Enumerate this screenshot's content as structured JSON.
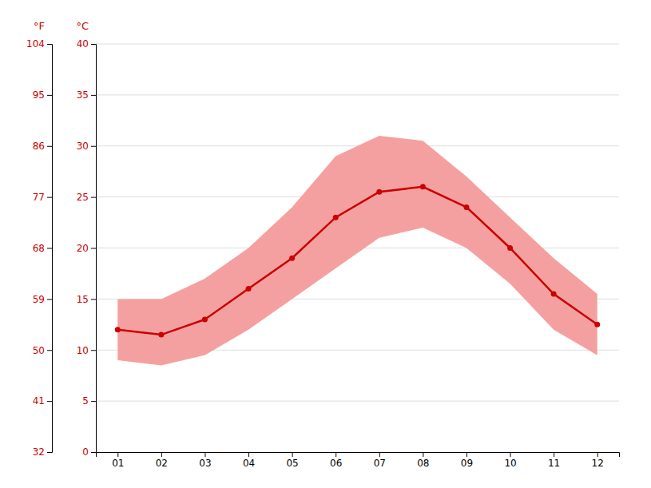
{
  "chart_data": {
    "type": "line",
    "categories": [
      "01",
      "02",
      "03",
      "04",
      "05",
      "06",
      "07",
      "08",
      "09",
      "10",
      "11",
      "12"
    ],
    "series": [
      {
        "type": "band",
        "color": "#f5a0a0",
        "values": [
          15,
          15,
          17,
          20,
          24,
          29,
          31,
          30.5,
          27,
          23,
          19,
          15.5
        ],
        "lower_values": [
          9,
          8.5,
          9.5,
          12,
          15,
          18,
          21,
          22,
          20,
          16.5,
          12,
          9.5
        ]
      },
      {
        "type": "line",
        "color": "#cc0000",
        "marker": "circle",
        "values": [
          12,
          11.5,
          13,
          16,
          19,
          23,
          25.5,
          26,
          24,
          20,
          15.5,
          12.5
        ]
      }
    ],
    "ylabel": "°C",
    "y2label": "°F",
    "ylim": [
      0,
      40
    ],
    "yticks": [
      0,
      5,
      10,
      15,
      20,
      25,
      30,
      35,
      40
    ],
    "y2lim": [
      32,
      104
    ],
    "y2ticks": [
      32,
      41,
      50,
      59,
      68,
      77,
      86,
      95,
      104
    ],
    "grid": true
  }
}
